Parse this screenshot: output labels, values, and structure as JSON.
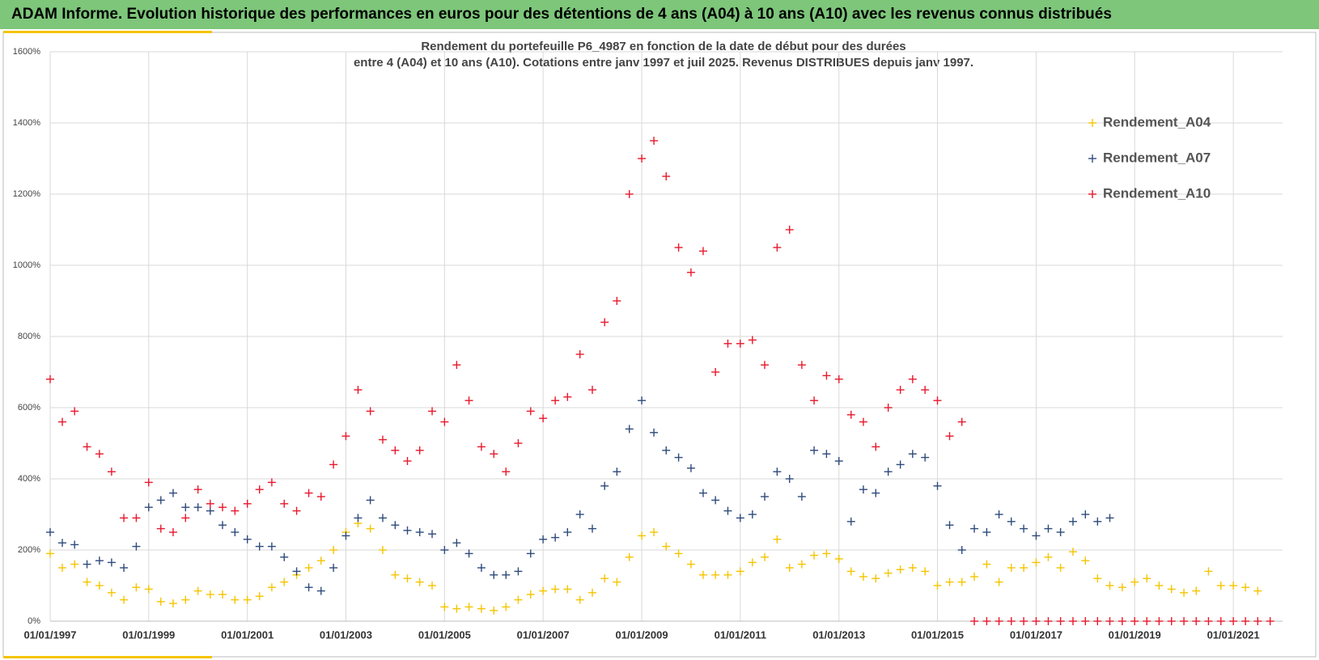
{
  "header": {
    "title": "ADAM Informe. Evolution historique des performances en euros pour des détentions de 4 ans (A04) à 10 ans (A10) avec les revenus connus distribués"
  },
  "chart_data": {
    "type": "scatter",
    "title": "Rendement du portefeuille P6_4987 en fonction de la date de début pour des durées",
    "subtitle": "entre 4 (A04) et 10 ans (A10). Cotations  entre janv 1997 et juil 2025. Revenus DISTRIBUES depuis janv 1997.",
    "x": [
      "1997-01-01",
      "1997-04-01",
      "1997-07-01",
      "1997-10-01",
      "1998-01-01",
      "1998-04-01",
      "1998-07-01",
      "1998-10-01",
      "1999-01-01",
      "1999-04-01",
      "1999-07-01",
      "1999-10-01",
      "2000-01-01",
      "2000-04-01",
      "2000-07-01",
      "2000-10-01",
      "2001-01-01",
      "2001-04-01",
      "2001-07-01",
      "2001-10-01",
      "2002-01-01",
      "2002-04-01",
      "2002-07-01",
      "2002-10-01",
      "2003-01-01",
      "2003-04-01",
      "2003-07-01",
      "2003-10-01",
      "2004-01-01",
      "2004-04-01",
      "2004-07-01",
      "2004-10-01",
      "2005-01-01",
      "2005-04-01",
      "2005-07-01",
      "2005-10-01",
      "2006-01-01",
      "2006-04-01",
      "2006-07-01",
      "2006-10-01",
      "2007-01-01",
      "2007-04-01",
      "2007-07-01",
      "2007-10-01",
      "2008-01-01",
      "2008-04-01",
      "2008-07-01",
      "2008-10-01",
      "2009-01-01",
      "2009-04-01",
      "2009-07-01",
      "2009-10-01",
      "2010-01-01",
      "2010-04-01",
      "2010-07-01",
      "2010-10-01",
      "2011-01-01",
      "2011-04-01",
      "2011-07-01",
      "2011-10-01",
      "2012-01-01",
      "2012-04-01",
      "2012-07-01",
      "2012-10-01",
      "2013-01-01",
      "2013-04-01",
      "2013-07-01",
      "2013-10-01",
      "2014-01-01",
      "2014-04-01",
      "2014-07-01",
      "2014-10-01",
      "2015-01-01",
      "2015-04-01",
      "2015-07-01",
      "2015-10-01",
      "2016-01-01",
      "2016-04-01",
      "2016-07-01",
      "2016-10-01",
      "2017-01-01",
      "2017-04-01",
      "2017-07-01",
      "2017-10-01",
      "2018-01-01",
      "2018-04-01",
      "2018-07-01",
      "2018-10-01",
      "2019-01-01",
      "2019-04-01",
      "2019-07-01",
      "2019-10-01",
      "2020-01-01",
      "2020-04-01",
      "2020-07-01",
      "2020-10-01",
      "2021-01-01",
      "2021-04-01",
      "2021-07-01",
      "2021-10-01"
    ],
    "series": [
      {
        "name": "Rendement_A04",
        "color": "#f5c400",
        "values": [
          190,
          150,
          160,
          110,
          100,
          80,
          60,
          95,
          90,
          55,
          50,
          60,
          85,
          75,
          75,
          60,
          60,
          70,
          95,
          110,
          130,
          150,
          170,
          200,
          250,
          275,
          260,
          200,
          130,
          120,
          110,
          100,
          40,
          35,
          40,
          35,
          30,
          40,
          60,
          75,
          85,
          90,
          90,
          60,
          80,
          120,
          110,
          180,
          240,
          250,
          210,
          190,
          160,
          130,
          130,
          130,
          140,
          165,
          180,
          230,
          150,
          160,
          185,
          190,
          175,
          140,
          125,
          120,
          135,
          145,
          150,
          140,
          100,
          110,
          110,
          125,
          160,
          110,
          150,
          150,
          165,
          180,
          150,
          195,
          170,
          120,
          100,
          95,
          110,
          120,
          100,
          90,
          80,
          85,
          140,
          100,
          100,
          95,
          85,
          null
        ]
      },
      {
        "name": "Rendement_A07",
        "color": "#2f4b7c",
        "values": [
          250,
          220,
          215,
          160,
          170,
          165,
          150,
          210,
          320,
          340,
          360,
          320,
          320,
          310,
          270,
          250,
          230,
          210,
          210,
          180,
          140,
          95,
          85,
          150,
          240,
          290,
          340,
          290,
          270,
          255,
          250,
          245,
          200,
          220,
          190,
          150,
          130,
          130,
          140,
          190,
          230,
          235,
          250,
          300,
          260,
          380,
          420,
          540,
          620,
          530,
          480,
          460,
          430,
          360,
          340,
          310,
          290,
          300,
          350,
          420,
          400,
          350,
          480,
          470,
          450,
          280,
          370,
          360,
          420,
          440,
          470,
          460,
          380,
          270,
          200,
          260,
          250,
          300,
          280,
          260,
          240,
          260,
          250,
          280,
          300,
          280,
          290,
          null,
          null,
          null,
          null,
          null,
          null,
          null,
          null,
          null,
          null,
          null,
          null,
          null
        ]
      },
      {
        "name": "Rendement_A10",
        "color": "#e8192c",
        "values": [
          680,
          560,
          590,
          490,
          470,
          420,
          290,
          290,
          390,
          260,
          250,
          290,
          370,
          330,
          320,
          310,
          330,
          370,
          390,
          330,
          310,
          360,
          350,
          440,
          520,
          650,
          590,
          510,
          480,
          450,
          480,
          590,
          560,
          720,
          620,
          490,
          470,
          420,
          500,
          590,
          570,
          620,
          630,
          750,
          650,
          840,
          900,
          1200,
          1300,
          1350,
          1250,
          1050,
          980,
          1040,
          700,
          780,
          780,
          790,
          720,
          1050,
          1100,
          720,
          620,
          690,
          680,
          580,
          560,
          490,
          600,
          650,
          680,
          650,
          620,
          520,
          560,
          0,
          0,
          0,
          0,
          0,
          0,
          0,
          0,
          0,
          0,
          0,
          0,
          0,
          0,
          0,
          0,
          0,
          0,
          0,
          0,
          0,
          0,
          0,
          0,
          0
        ]
      }
    ],
    "xlim": [
      "1997-01-01",
      "2022-01-01"
    ],
    "xticks": [
      {
        "value": "1997-01-01",
        "label": "01/01/1997"
      },
      {
        "value": "1999-01-01",
        "label": "01/01/1999"
      },
      {
        "value": "2001-01-01",
        "label": "01/01/2001"
      },
      {
        "value": "2003-01-01",
        "label": "01/01/2003"
      },
      {
        "value": "2005-01-01",
        "label": "01/01/2005"
      },
      {
        "value": "2007-01-01",
        "label": "01/01/2007"
      },
      {
        "value": "2009-01-01",
        "label": "01/01/2009"
      },
      {
        "value": "2011-01-01",
        "label": "01/01/2011"
      },
      {
        "value": "2013-01-01",
        "label": "01/01/2013"
      },
      {
        "value": "2015-01-01",
        "label": "01/01/2015"
      },
      {
        "value": "2017-01-01",
        "label": "01/01/2017"
      },
      {
        "value": "2019-01-01",
        "label": "01/01/2019"
      },
      {
        "value": "2021-01-01",
        "label": "01/01/2021"
      }
    ],
    "ylim": [
      0,
      1600
    ],
    "yticks": [
      {
        "value": 0,
        "label": "0%"
      },
      {
        "value": 200,
        "label": "200%"
      },
      {
        "value": 400,
        "label": "400%"
      },
      {
        "value": 600,
        "label": "600%"
      },
      {
        "value": 800,
        "label": "800%"
      },
      {
        "value": 1000,
        "label": "1000%"
      },
      {
        "value": 1200,
        "label": "1200%"
      },
      {
        "value": 1400,
        "label": "1400%"
      },
      {
        "value": 1600,
        "label": "1600%"
      }
    ],
    "grid": true,
    "legend": "upper right"
  }
}
